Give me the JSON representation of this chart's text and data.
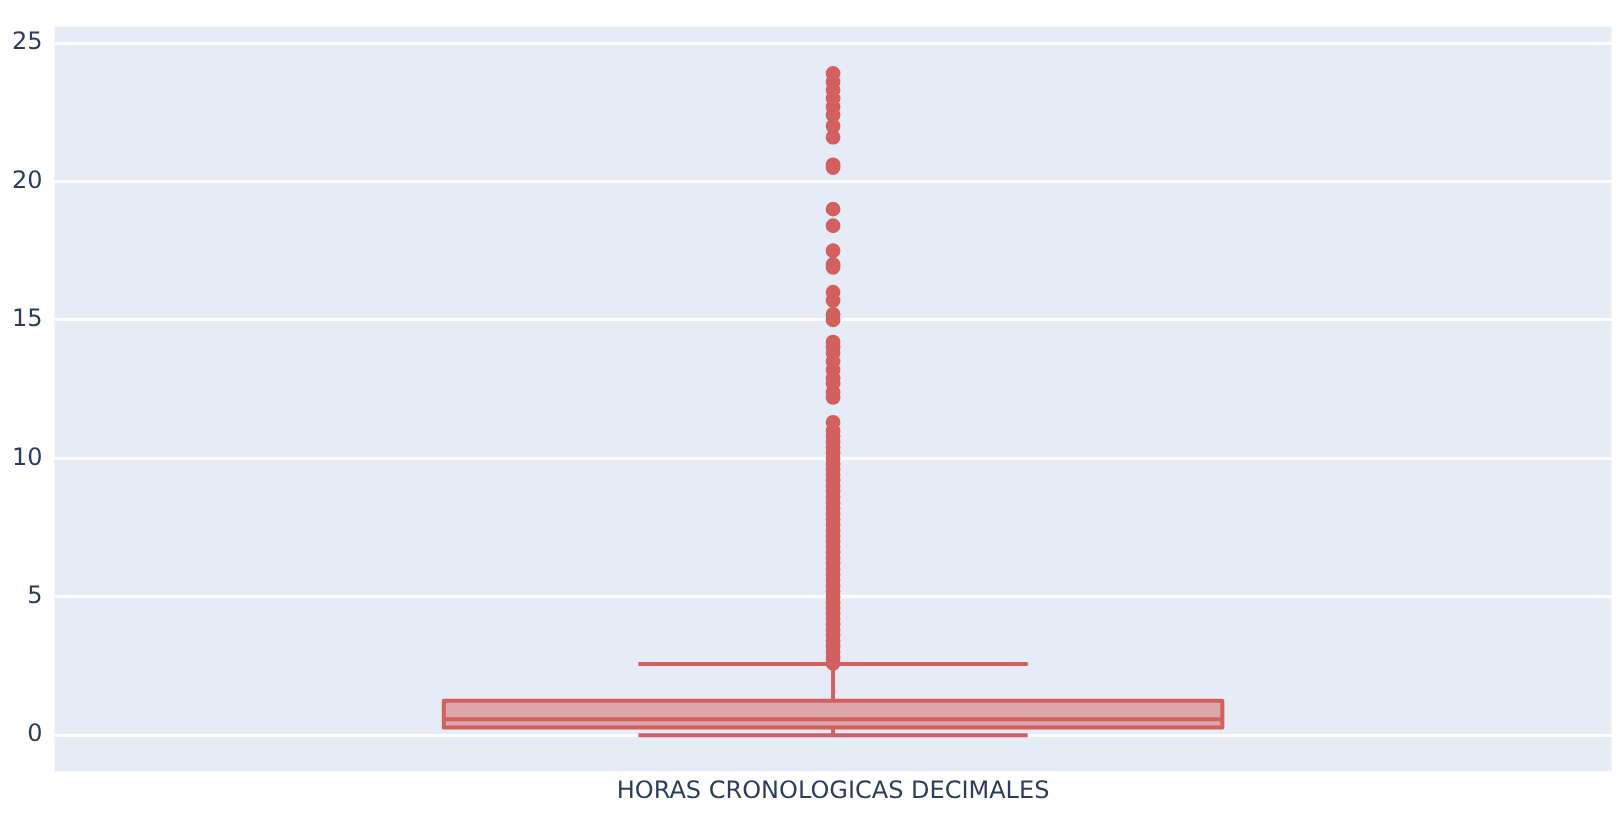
{
  "chart_data": {
    "type": "box",
    "categories": [
      "HORAS CRONOLOGICAS DECIMALES"
    ],
    "series": [
      {
        "color": "#d35f5f",
        "boxes": [
          {
            "low": 0,
            "q1": 0.28,
            "median": 0.58,
            "q3": 1.24,
            "high": 2.57,
            "outliers": [
              2.6,
              2.8,
              3.0,
              3.2,
              3.4,
              3.6,
              3.8,
              4.0,
              4.2,
              4.4,
              4.6,
              4.8,
              5.0,
              5.2,
              5.4,
              5.6,
              5.8,
              6.0,
              6.2,
              6.4,
              6.6,
              6.8,
              7.0,
              7.2,
              7.4,
              7.6,
              7.8,
              8.0,
              8.2,
              8.4,
              8.6,
              8.8,
              9.0,
              9.2,
              9.4,
              9.6,
              9.8,
              10.0,
              10.2,
              10.4,
              10.6,
              10.8,
              11.0,
              11.3,
              12.2,
              12.4,
              12.7,
              12.9,
              13.2,
              13.5,
              13.8,
              14.0,
              14.2,
              15.0,
              15.2,
              15.7,
              16.0,
              16.9,
              17.0,
              17.5,
              18.4,
              19.0,
              20.5,
              20.6,
              21.6,
              22.0,
              22.4,
              22.7,
              23.0,
              23.3,
              23.6,
              23.9
            ]
          }
        ]
      }
    ],
    "ylim": [
      -1.3,
      25.6
    ],
    "yticks": [
      0,
      5,
      10,
      15,
      20,
      25
    ],
    "grid": "y"
  }
}
